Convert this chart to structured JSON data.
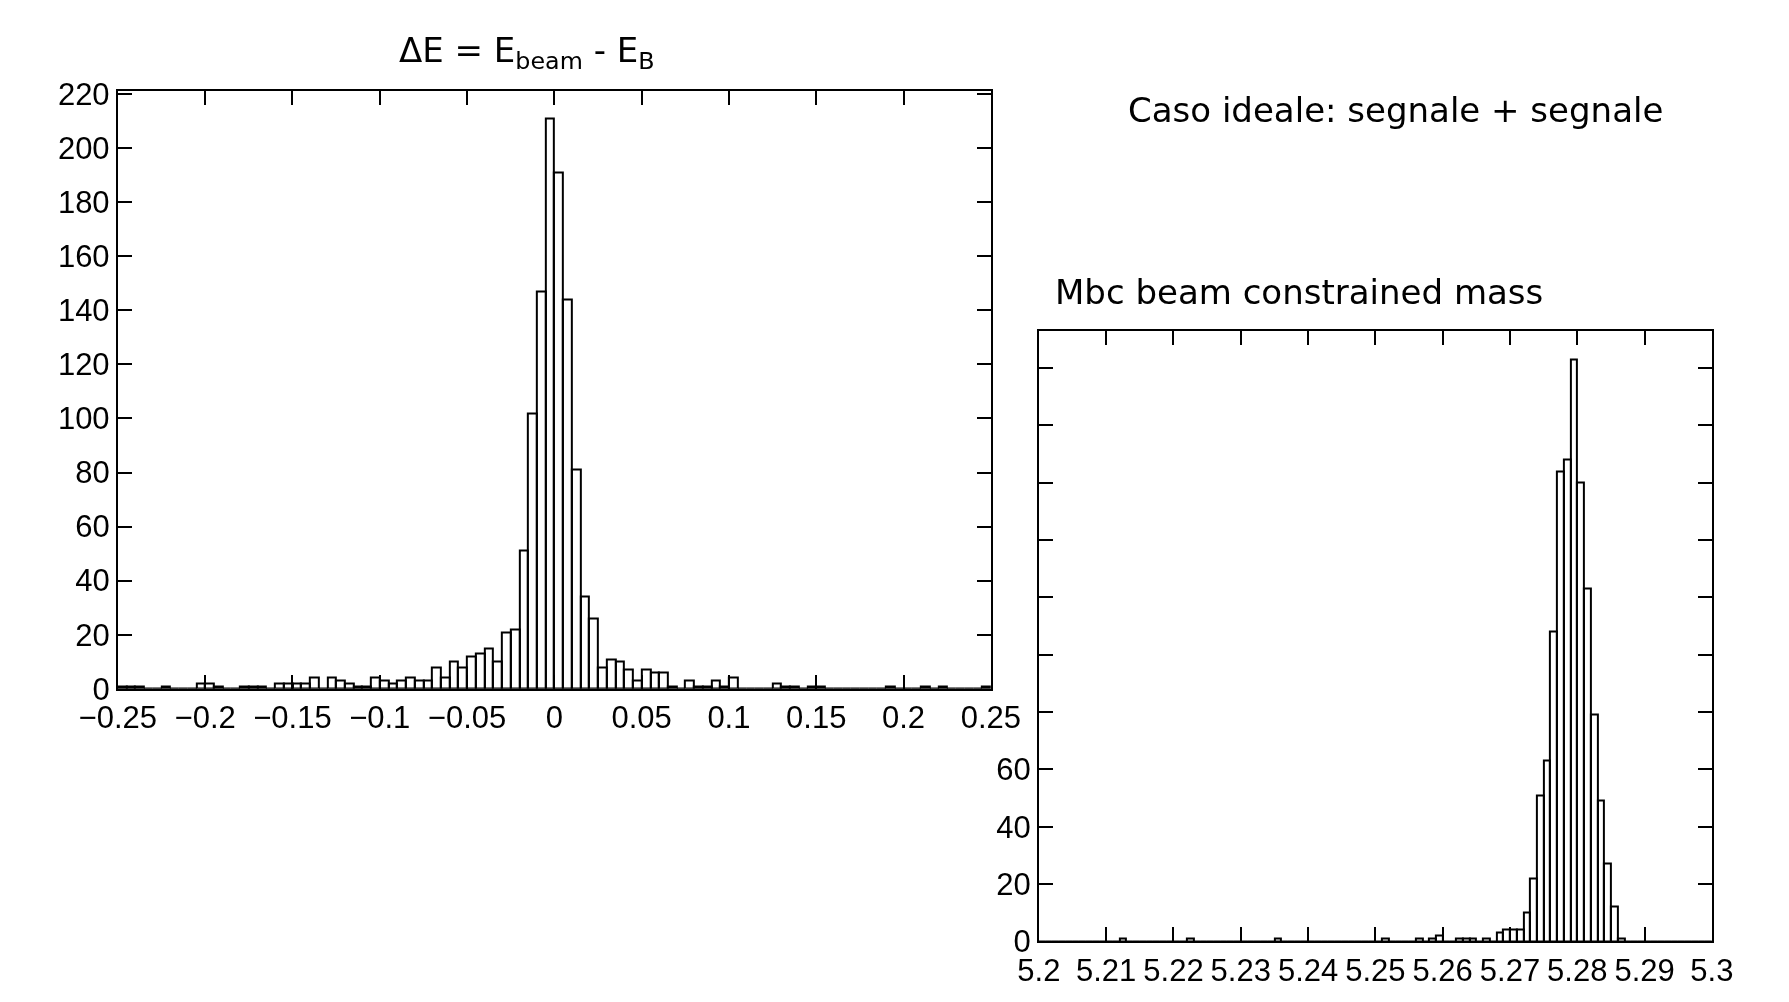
{
  "chart_data": [
    {
      "type": "histogram",
      "title": "ΔE = E$_{beam}$ - E$_{B}$",
      "color": "#000000",
      "bins": [
        -0.25,
        -0.245,
        -0.24,
        -0.235,
        -0.23,
        -0.225,
        -0.22,
        -0.215,
        -0.21,
        -0.205,
        -0.2,
        -0.195,
        -0.19,
        -0.185,
        -0.18,
        -0.175,
        -0.17,
        -0.165,
        -0.16,
        -0.155,
        -0.15,
        -0.145,
        -0.14,
        -0.135,
        -0.13,
        -0.125,
        -0.12,
        -0.115,
        -0.11,
        -0.105,
        -0.1,
        -0.095,
        -0.09,
        -0.085,
        -0.08,
        -0.075,
        -0.07,
        -0.065,
        -0.06,
        -0.055,
        -0.05,
        -0.045,
        -0.04,
        -0.035,
        -0.03,
        -0.025,
        -0.02,
        -0.015,
        -0.01,
        -0.005,
        0,
        0.005,
        0.01,
        0.015,
        0.02,
        0.025,
        0.03,
        0.035,
        0.04,
        0.045,
        0.05,
        0.055,
        0.06,
        0.065,
        0.07,
        0.075,
        0.08,
        0.085,
        0.09,
        0.095,
        0.1,
        0.105,
        0.11,
        0.115,
        0.12,
        0.125,
        0.13,
        0.135,
        0.14,
        0.145,
        0.15,
        0.155,
        0.16,
        0.165,
        0.17,
        0.175,
        0.18,
        0.185,
        0.19,
        0.195,
        0.2,
        0.205,
        0.21,
        0.215,
        0.22,
        0.225,
        0.23,
        0.235,
        0.24,
        0.245,
        0.25
      ],
      "values": [
        1,
        1,
        1,
        0,
        0,
        1,
        0,
        0,
        0,
        2,
        2,
        1,
        0,
        0,
        1,
        1,
        1,
        0,
        2,
        2,
        2,
        2,
        4,
        0,
        4,
        3,
        2,
        1,
        1,
        4,
        3,
        2,
        3,
        4,
        3,
        3,
        8,
        4,
        10,
        8,
        12,
        13,
        15,
        10,
        21,
        22,
        51,
        102,
        147,
        211,
        191,
        144,
        81,
        34,
        26,
        8,
        11,
        10,
        7,
        3,
        7,
        6,
        6,
        1,
        0,
        3,
        1,
        1,
        3,
        1,
        4,
        0,
        0,
        0,
        0,
        2,
        1,
        1,
        0,
        1,
        1,
        0,
        0,
        0,
        0,
        0,
        0,
        0,
        1,
        0,
        0,
        0,
        1,
        0,
        1,
        0,
        0,
        0,
        0,
        1
      ],
      "xlim": [
        -0.25,
        0.25
      ],
      "xticks": [
        -0.25,
        -0.2,
        -0.15,
        -0.1,
        -0.05,
        0,
        0.05,
        0.1,
        0.15,
        0.2,
        0.25
      ],
      "ylim": [
        0,
        221
      ],
      "yticks": [
        0,
        20,
        40,
        60,
        80,
        100,
        120,
        140,
        160,
        180,
        200,
        220
      ]
    },
    {
      "type": "histogram",
      "title": "Mbc beam constrained mass",
      "color": "#000000",
      "annotations": [
        "Caso ideale: segnale + segnale"
      ],
      "bins": [
        5.2,
        5.201,
        5.202,
        5.203,
        5.204,
        5.205,
        5.206,
        5.207,
        5.208,
        5.209,
        5.21,
        5.211,
        5.212,
        5.213,
        5.214,
        5.215,
        5.216,
        5.217,
        5.218,
        5.219,
        5.22,
        5.221,
        5.222,
        5.223,
        5.224,
        5.225,
        5.226,
        5.227,
        5.228,
        5.229,
        5.23,
        5.231,
        5.232,
        5.233,
        5.234,
        5.235,
        5.236,
        5.237,
        5.238,
        5.239,
        5.24,
        5.241,
        5.242,
        5.243,
        5.244,
        5.245,
        5.246,
        5.247,
        5.248,
        5.249,
        5.25,
        5.251,
        5.252,
        5.253,
        5.254,
        5.255,
        5.256,
        5.257,
        5.258,
        5.259,
        5.26,
        5.261,
        5.262,
        5.263,
        5.264,
        5.265,
        5.266,
        5.267,
        5.268,
        5.269,
        5.27,
        5.271,
        5.272,
        5.273,
        5.274,
        5.275,
        5.276,
        5.277,
        5.278,
        5.279,
        5.28,
        5.281,
        5.282,
        5.283,
        5.284,
        5.285,
        5.286,
        5.287,
        5.288,
        5.289,
        5.29,
        5.291,
        5.292,
        5.293,
        5.294,
        5.295,
        5.296,
        5.297,
        5.298,
        5.299,
        5.3
      ],
      "values": [
        0,
        0,
        0,
        0,
        0,
        0,
        0,
        0,
        0,
        0,
        0,
        0,
        1,
        0,
        0,
        0,
        0,
        0,
        0,
        0,
        0,
        0,
        1,
        0,
        0,
        0,
        0,
        0,
        0,
        0,
        0,
        0,
        0,
        0,
        0,
        1,
        0,
        0,
        0,
        0,
        0,
        0,
        0,
        0,
        0,
        0,
        0,
        0,
        0,
        0,
        0,
        1,
        0,
        0,
        0,
        0,
        1,
        0,
        1,
        2,
        0,
        0,
        1,
        1,
        1,
        0,
        1,
        0,
        3,
        4,
        4,
        4,
        10,
        22,
        51,
        63,
        108,
        164,
        168,
        203,
        160,
        123,
        79,
        49,
        27,
        12,
        1,
        0,
        0,
        0,
        0,
        0,
        0,
        0,
        0,
        0,
        0,
        0,
        0,
        0
      ],
      "xlim": [
        5.2,
        5.3
      ],
      "xticks": [
        5.2,
        5.21,
        5.22,
        5.23,
        5.24,
        5.25,
        5.26,
        5.27,
        5.28,
        5.29,
        5.3
      ],
      "ylim": [
        0,
        213
      ],
      "yticks": [
        0,
        20,
        40,
        60,
        {
          "value": 80,
          "label": null
        },
        {
          "value": 100,
          "label": null
        },
        {
          "value": 120,
          "label": null
        },
        {
          "value": 140,
          "label": null
        },
        {
          "value": 160,
          "label": null
        },
        {
          "value": 180,
          "label": null
        },
        {
          "value": 200,
          "label": null
        }
      ]
    }
  ]
}
